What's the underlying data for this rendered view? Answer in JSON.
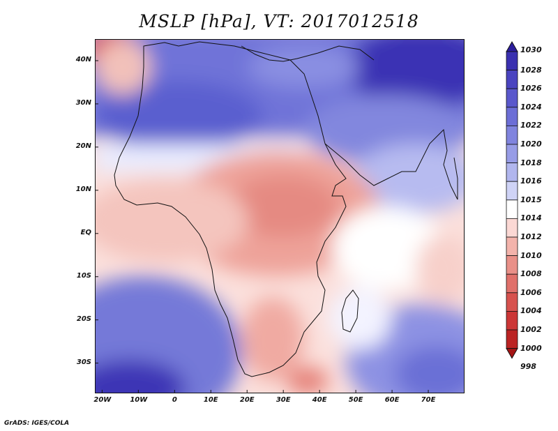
{
  "title": "MSLP [hPa], VT: 2017012518",
  "footer": "GrADS: IGES/COLA",
  "map": {
    "lat_labels": [
      "40N",
      "30N",
      "20N",
      "10N",
      "EQ",
      "10S",
      "20S",
      "30S"
    ],
    "lat_values": [
      40,
      30,
      20,
      10,
      0,
      -10,
      -20,
      -30
    ],
    "lon_labels": [
      "20W",
      "10W",
      "0",
      "10E",
      "20E",
      "30E",
      "40E",
      "50E",
      "60E",
      "70E"
    ],
    "lon_values": [
      -20,
      -10,
      0,
      10,
      20,
      30,
      40,
      50,
      60,
      70
    ],
    "lon_range": [
      -22,
      80
    ],
    "lat_range": [
      -37,
      45
    ]
  },
  "colorbar": {
    "levels": [
      "1030",
      "1028",
      "1026",
      "1024",
      "1022",
      "1020",
      "1018",
      "1016",
      "1015",
      "1014",
      "1012",
      "1010",
      "1008",
      "1006",
      "1004",
      "1002",
      "1000",
      "998"
    ],
    "colors": [
      "#2c1d9c",
      "#3a30b0",
      "#4a44c0",
      "#5a58cc",
      "#6c6ed6",
      "#8084de",
      "#979ce6",
      "#b1b6ee",
      "#cfd3f6",
      "#ffffff",
      "#fbd8d4",
      "#f3b3ab",
      "#e99088",
      "#e0706a",
      "#d7524e",
      "#cc3636",
      "#bb2323",
      "#a51515"
    ]
  }
}
